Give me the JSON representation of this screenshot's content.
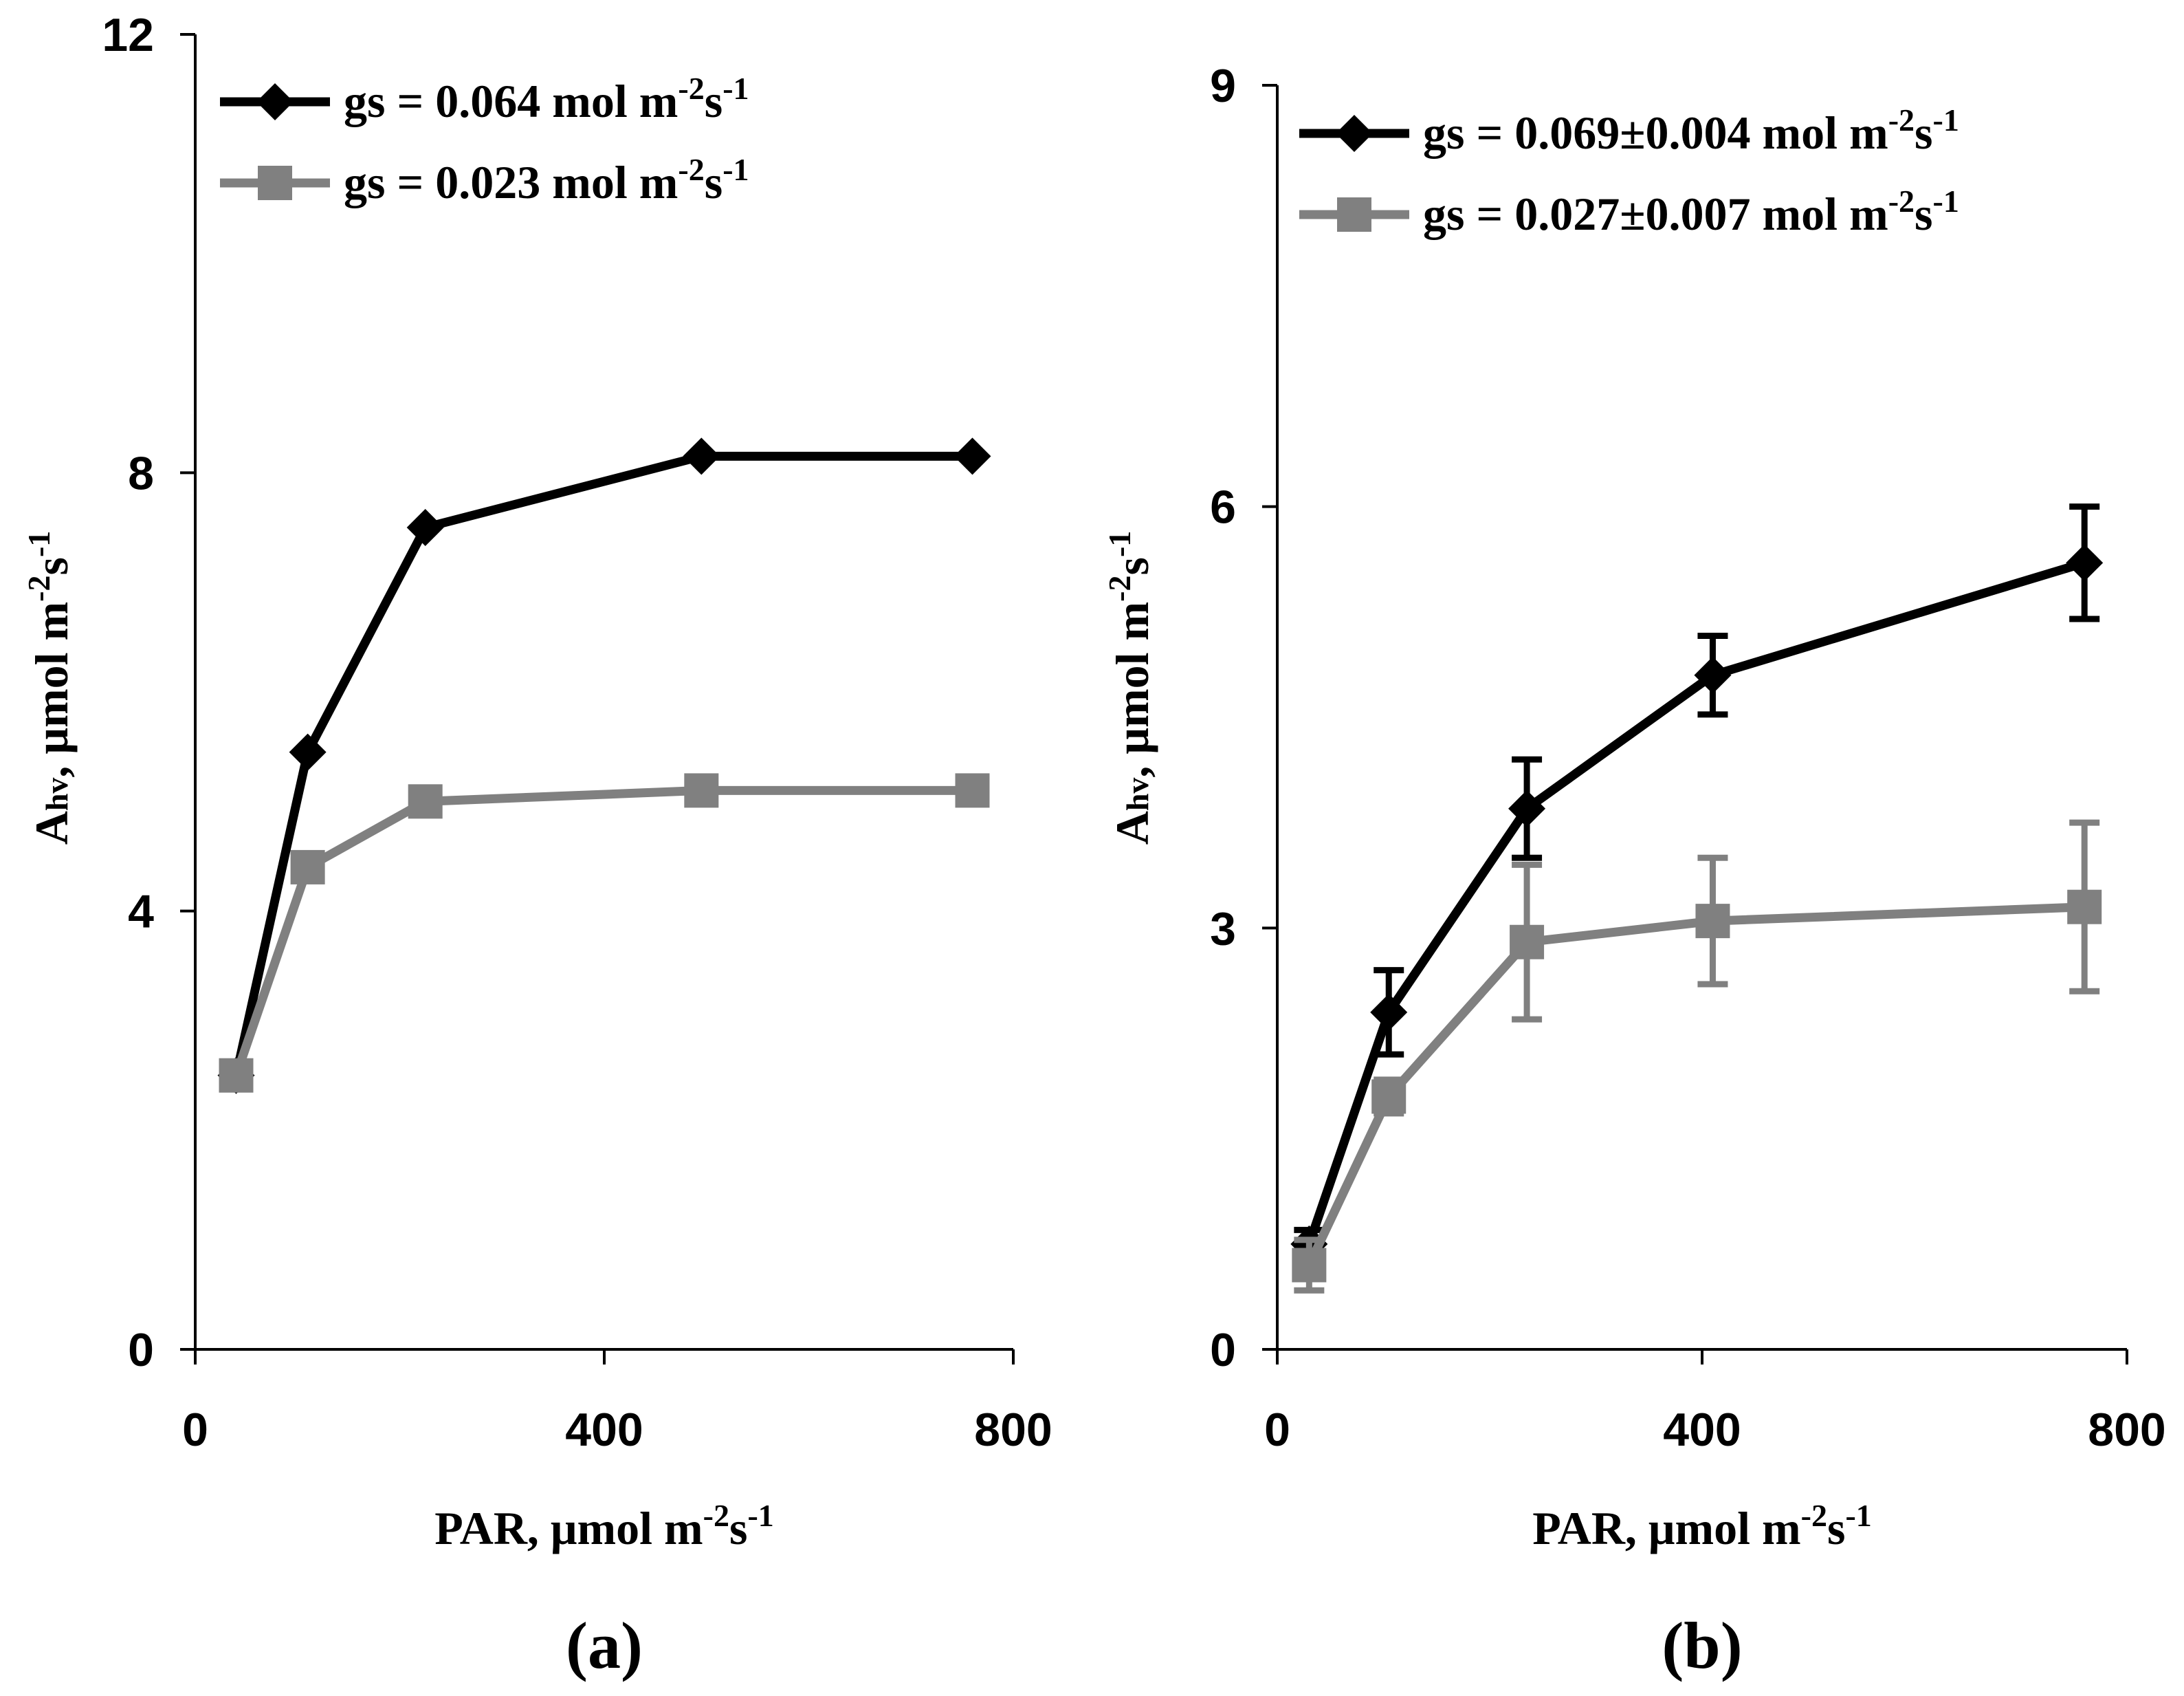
{
  "chart_data": [
    {
      "type": "line",
      "panel_label": "(a)",
      "xlabel": {
        "main": "PAR, μmol m",
        "sup1": "-2",
        "mid": "s",
        "sup2": "-1"
      },
      "ylabel": {
        "main": "A",
        "sub": "hv",
        "rest": ", μmol m",
        "sup1": "-2",
        "mid": "s",
        "sup2": "-1"
      },
      "xlim": [
        0,
        800
      ],
      "ylim": [
        0,
        12
      ],
      "xticks": [
        0,
        400,
        800
      ],
      "yticks": [
        0,
        4,
        8,
        12
      ],
      "xtick_labels": [
        "0",
        "400",
        "800"
      ],
      "ytick_labels": [
        "0",
        "4",
        "8",
        "12"
      ],
      "legend_position": "top-left",
      "series": [
        {
          "name": "gs = 0.064 mol m-2s-1",
          "legend": {
            "main": "gs = 0.064 mol m",
            "sup1": "-2",
            "mid": "s",
            "sup2": "-1"
          },
          "color": "#000000",
          "marker": "diamond",
          "x": [
            40,
            110,
            225,
            495,
            760
          ],
          "y": [
            2.5,
            5.45,
            7.5,
            8.15,
            8.15
          ]
        },
        {
          "name": "gs = 0.023 mol m-2s-1",
          "legend": {
            "main": "gs = 0.023 mol m",
            "sup1": "-2",
            "mid": "s",
            "sup2": "-1"
          },
          "color": "#808080",
          "marker": "square",
          "x": [
            40,
            110,
            225,
            495,
            760
          ],
          "y": [
            2.5,
            4.4,
            5.0,
            5.1,
            5.1
          ]
        }
      ]
    },
    {
      "type": "line",
      "panel_label": "(b)",
      "xlabel": {
        "main": "PAR, μmol m",
        "sup1": "-2",
        "mid": "s",
        "sup2": "-1"
      },
      "ylabel": {
        "main": "A",
        "sub": "hv",
        "rest": ", μmol m",
        "sup1": "-2",
        "mid": "s",
        "sup2": "-1"
      },
      "xlim": [
        0,
        800
      ],
      "ylim": [
        0,
        9
      ],
      "xticks": [
        0,
        400,
        800
      ],
      "yticks": [
        0,
        3,
        6,
        9
      ],
      "xtick_labels": [
        "0",
        "400",
        "800"
      ],
      "ytick_labels": [
        "0",
        "3",
        "6",
        "9"
      ],
      "legend_position": "top-left",
      "series": [
        {
          "name": "gs = 0.069±0.004 mol m-2s-1",
          "legend": {
            "main": "gs = 0.069±0.004 mol m",
            "sup1": "-2",
            "mid": "s",
            "sup2": "-1"
          },
          "color": "#000000",
          "marker": "diamond",
          "x": [
            30,
            105,
            235,
            410,
            760
          ],
          "y": [
            0.75,
            2.4,
            3.85,
            4.8,
            5.6
          ],
          "error": [
            0.1,
            0.3,
            0.35,
            0.28,
            0.4
          ]
        },
        {
          "name": "gs = 0.027±0.007 mol m-2s-1",
          "legend": {
            "main": "gs = 0.027±0.007 mol m",
            "sup1": "-2",
            "mid": "s",
            "sup2": "-1"
          },
          "color": "#808080",
          "marker": "square",
          "x": [
            30,
            105,
            235,
            410,
            760
          ],
          "y": [
            0.6,
            1.8,
            2.9,
            3.05,
            3.15
          ],
          "error": [
            0.18,
            0.12,
            0.55,
            0.45,
            0.6
          ]
        }
      ]
    }
  ]
}
